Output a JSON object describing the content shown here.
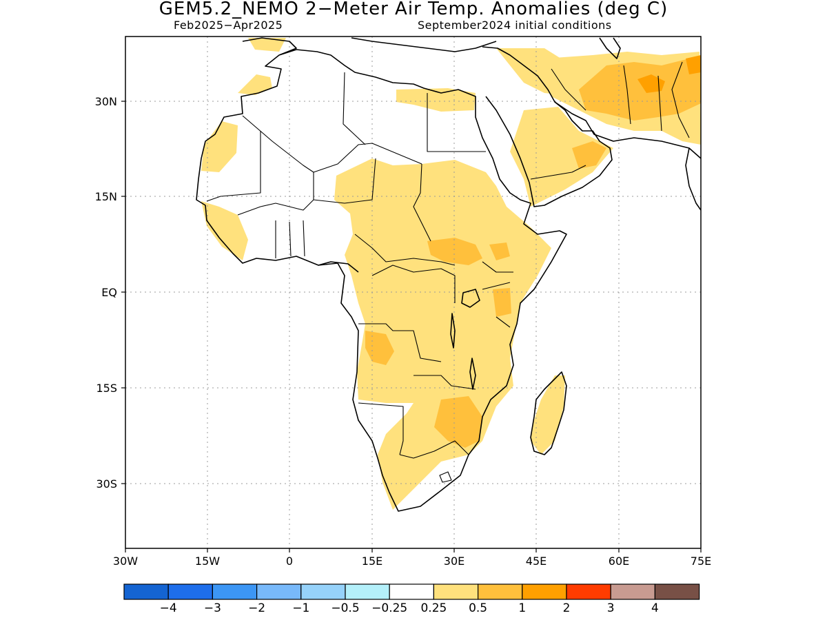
{
  "title": "GEM5.2_NEMO 2−Meter Air Temp. Anomalies (deg C)",
  "subtitle_left": "Feb2025−Apr2025",
  "subtitle_right": "September2024 initial conditions",
  "map": {
    "region": "Africa and Arabian Peninsula",
    "lon_range": [
      -30,
      75
    ],
    "lat_range": [
      -45,
      42
    ],
    "gridlines": "dotted",
    "lon_ticks": [
      "30W",
      "15W",
      "0",
      "15E",
      "30E",
      "45E",
      "60E",
      "75E"
    ],
    "lat_ticks": [
      "30N",
      "15N",
      "EQ",
      "15S",
      "30S"
    ]
  },
  "colorbar": {
    "colors": [
      "#1464d2",
      "#1e6eeb",
      "#3c96f5",
      "#78b9fa",
      "#96d2fa",
      "#b4f0fa",
      "#ffffff",
      "#ffe17d",
      "#ffc03c",
      "#ffa000",
      "#ff3c00",
      "#c89b91",
      "#785046"
    ],
    "labels": [
      "−4",
      "−3",
      "−2",
      "−1",
      "−0.5",
      "−0.25",
      "0.25",
      "0.5",
      "1",
      "2",
      "3",
      "4"
    ]
  },
  "legend": {
    "yellow": "#ffe17d",
    "light_orange": "#ffc03c",
    "orange": "#ffa000"
  }
}
